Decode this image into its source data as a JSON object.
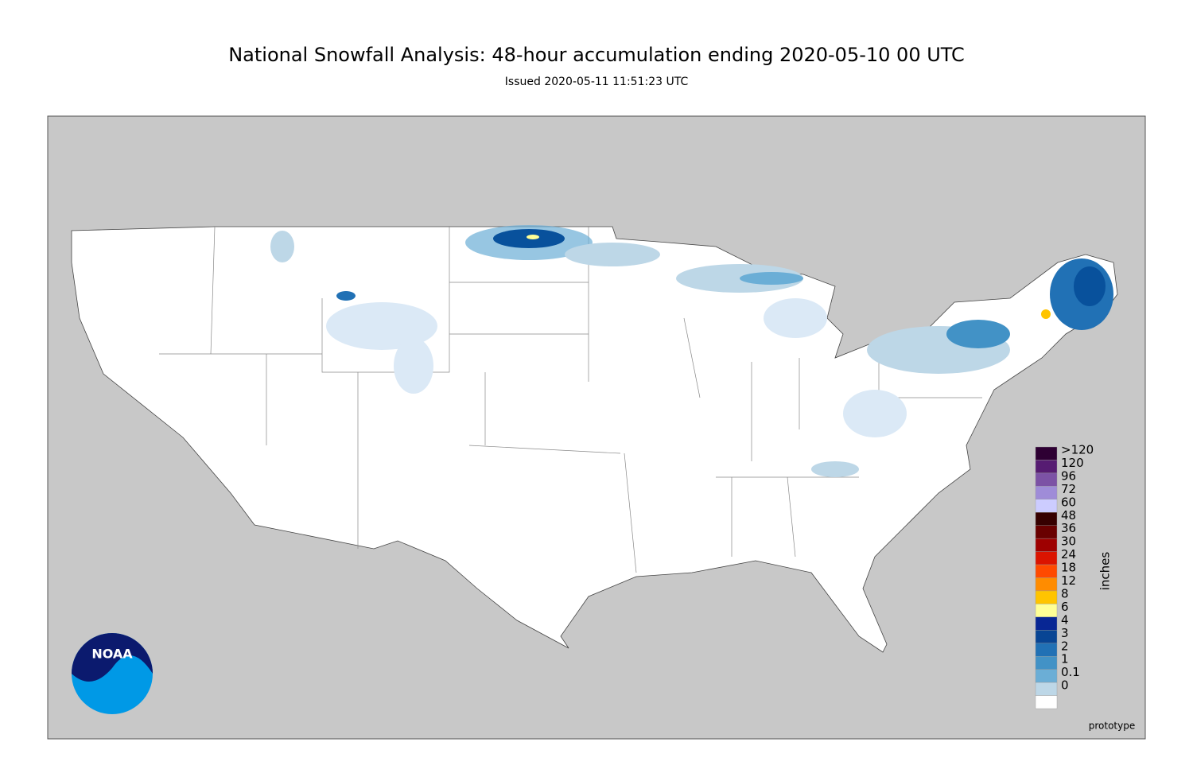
{
  "title": "National Snowfall Analysis: 48-hour accumulation ending 2020-05-10 00 UTC",
  "subtitle": "Issued 2020-05-11 11:51:23 UTC",
  "logo": {
    "text": "NOAA"
  },
  "watermark": "prototype",
  "legend": {
    "unit": "inches",
    "items": [
      {
        "label": ">120",
        "color": "#2e0033"
      },
      {
        "label": "120",
        "color": "#561c72"
      },
      {
        "label": "96",
        "color": "#7c52a5"
      },
      {
        "label": "72",
        "color": "#9f8cd8"
      },
      {
        "label": "60",
        "color": "#ccccff"
      },
      {
        "label": "48",
        "color": "#360000"
      },
      {
        "label": "36",
        "color": "#690000"
      },
      {
        "label": "30",
        "color": "#9e0000"
      },
      {
        "label": "24",
        "color": "#db1400"
      },
      {
        "label": "18",
        "color": "#ff4a00"
      },
      {
        "label": "12",
        "color": "#ff8c00"
      },
      {
        "label": "8",
        "color": "#ffc400"
      },
      {
        "label": "6",
        "color": "#ffff96"
      },
      {
        "label": "4",
        "color": "#082694"
      },
      {
        "label": "3",
        "color": "#084594"
      },
      {
        "label": "2",
        "color": "#2171b5"
      },
      {
        "label": "1",
        "color": "#4292c6"
      },
      {
        "label": "0.1",
        "color": "#6baed6"
      },
      {
        "label": "0",
        "color": "#bdd7e7"
      }
    ]
  }
}
